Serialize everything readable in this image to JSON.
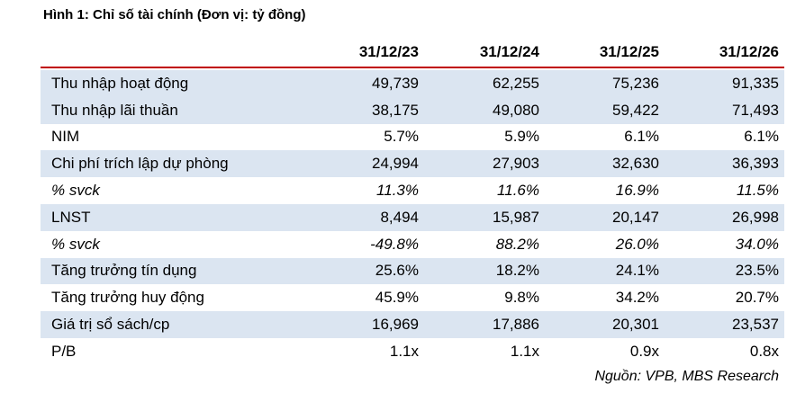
{
  "title": "Hình 1: Chỉ số tài chính (Đơn vị: tỷ đồng)",
  "table": {
    "columns": [
      "",
      "31/12/23",
      "31/12/24",
      "31/12/25",
      "31/12/26"
    ],
    "rows": [
      {
        "label": "Thu nhập hoạt động",
        "values": [
          "49,739",
          "62,255",
          "75,236",
          "91,335"
        ],
        "shaded": true,
        "italic": false
      },
      {
        "label": "Thu nhập lãi thuần",
        "values": [
          "38,175",
          "49,080",
          "59,422",
          "71,493"
        ],
        "shaded": true,
        "italic": false
      },
      {
        "label": "NIM",
        "values": [
          "5.7%",
          "5.9%",
          "6.1%",
          "6.1%"
        ],
        "shaded": false,
        "italic": false
      },
      {
        "label": "Chi phí trích lập dự phòng",
        "values": [
          "24,994",
          "27,903",
          "32,630",
          "36,393"
        ],
        "shaded": true,
        "italic": false
      },
      {
        "label": "% svck",
        "values": [
          "11.3%",
          "11.6%",
          "16.9%",
          "11.5%"
        ],
        "shaded": false,
        "italic": true
      },
      {
        "label": "LNST",
        "values": [
          "8,494",
          "15,987",
          "20,147",
          "26,998"
        ],
        "shaded": true,
        "italic": false
      },
      {
        "label": "% svck",
        "values": [
          "-49.8%",
          "88.2%",
          "26.0%",
          "34.0%"
        ],
        "shaded": false,
        "italic": true
      },
      {
        "label": "Tăng trưởng tín dụng",
        "values": [
          "25.6%",
          "18.2%",
          "24.1%",
          "23.5%"
        ],
        "shaded": true,
        "italic": false
      },
      {
        "label": "Tăng trưởng huy động",
        "values": [
          "45.9%",
          "9.8%",
          "34.2%",
          "20.7%"
        ],
        "shaded": false,
        "italic": false
      },
      {
        "label": "Giá trị sổ sách/cp",
        "values": [
          "16,969",
          "17,886",
          "20,301",
          "23,537"
        ],
        "shaded": true,
        "italic": false
      },
      {
        "label": "P/B",
        "values": [
          "1.1x",
          "1.1x",
          "0.9x",
          "0.8x"
        ],
        "shaded": false,
        "italic": false
      }
    ]
  },
  "source": "Nguồn: VPB, MBS Research",
  "colors": {
    "header_rule": "#c00000",
    "row_shade": "#dbe5f1"
  }
}
